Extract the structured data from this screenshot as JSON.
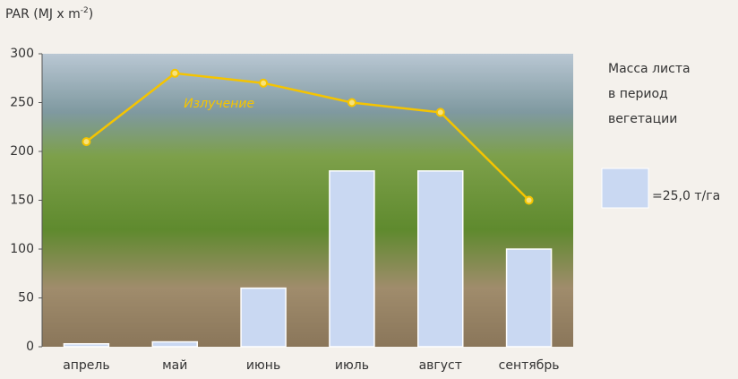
{
  "chart_data": {
    "type": "bar_line",
    "y_label": "PAR (MJ x m",
    "y_label_sup": "-2",
    "y_label_end": ")",
    "categories": [
      "апрель",
      "май",
      "июнь",
      "июль",
      "август",
      "сентябрь"
    ],
    "series": [
      {
        "name": "=25,0 т/га",
        "type": "bar",
        "color": "#c9d8f2",
        "values": [
          3,
          5,
          60,
          180,
          180,
          100
        ]
      },
      {
        "name": "Излучение",
        "type": "line",
        "color": "#f5c400",
        "values": [
          210,
          280,
          270,
          250,
          240,
          150
        ]
      }
    ],
    "legend_title": [
      "Масса листа",
      "в период",
      "вегетации"
    ],
    "ylim": [
      0,
      300
    ],
    "yticks": [
      0,
      50,
      100,
      150,
      200,
      250,
      300
    ]
  }
}
